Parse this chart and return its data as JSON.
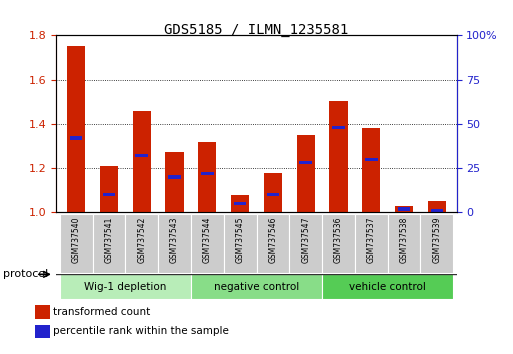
{
  "title": "GDS5185 / ILMN_1235581",
  "samples": [
    "GSM737540",
    "GSM737541",
    "GSM737542",
    "GSM737543",
    "GSM737544",
    "GSM737545",
    "GSM737546",
    "GSM737547",
    "GSM737536",
    "GSM737537",
    "GSM737538",
    "GSM737539"
  ],
  "transformed_count": [
    1.75,
    1.21,
    1.46,
    1.275,
    1.32,
    1.08,
    1.18,
    1.35,
    1.505,
    1.38,
    1.03,
    1.05
  ],
  "percentile_rank": [
    42,
    10,
    32,
    20,
    22,
    5,
    10,
    28,
    48,
    30,
    2,
    1
  ],
  "groups": [
    {
      "label": "Wig-1 depletion",
      "start": 0,
      "end": 3
    },
    {
      "label": "negative control",
      "start": 4,
      "end": 7
    },
    {
      "label": "vehicle control",
      "start": 8,
      "end": 11
    }
  ],
  "group_colors": [
    "#b8edb8",
    "#b8edb8",
    "#66dd66"
  ],
  "ylim_left": [
    1.0,
    1.8
  ],
  "ylim_right": [
    0,
    100
  ],
  "yticks_left": [
    1.0,
    1.2,
    1.4,
    1.6,
    1.8
  ],
  "yticks_right": [
    0,
    25,
    50,
    75,
    100
  ],
  "bar_color": "#cc2200",
  "percentile_color": "#2222cc",
  "bar_width": 0.55,
  "legend_items": [
    {
      "label": "transformed count",
      "color": "#cc2200"
    },
    {
      "label": "percentile rank within the sample",
      "color": "#2222cc"
    }
  ],
  "protocol_label": "protocol",
  "tick_label_color_left": "#cc2200",
  "tick_label_color_right": "#2222cc"
}
